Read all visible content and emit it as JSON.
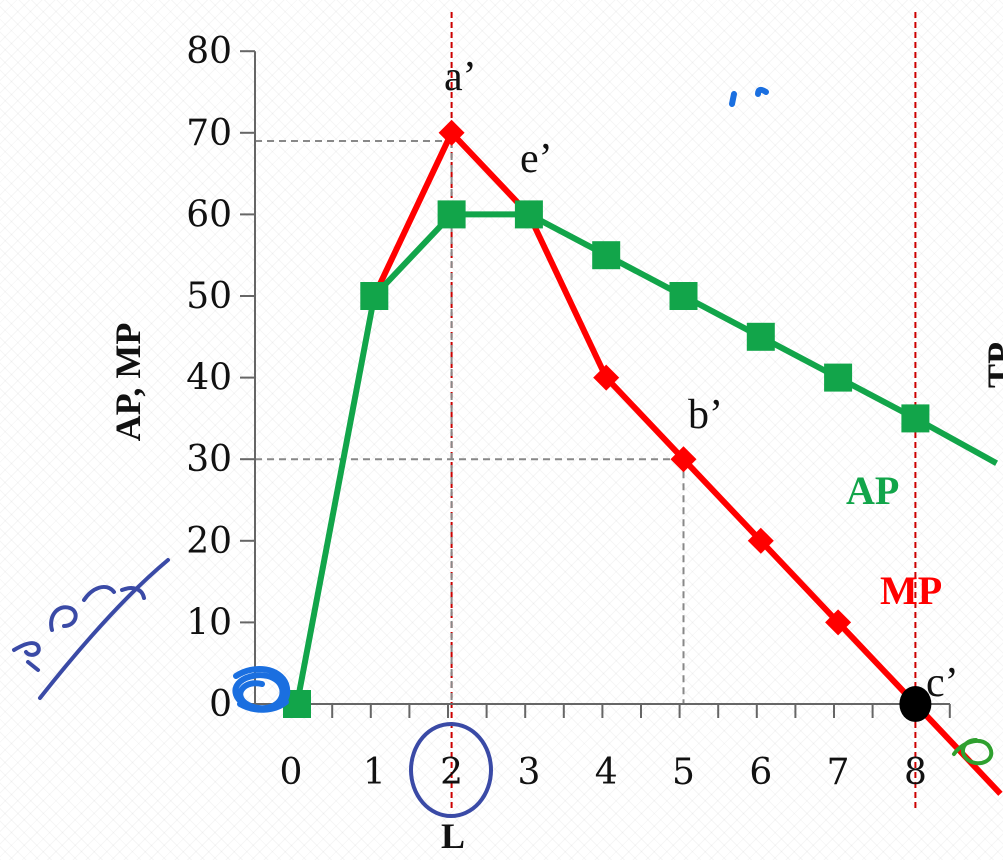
{
  "chart_data": {
    "type": "line",
    "ylabel": "AP, MP",
    "xlabel": "L",
    "ylim": [
      0,
      80
    ],
    "y_ticks": [
      "0",
      "10",
      "20",
      "30",
      "40",
      "50",
      "60",
      "70",
      "80"
    ],
    "x_ticks": [
      "0",
      "1",
      "2",
      "3",
      "4",
      "5",
      "6",
      "7",
      "8"
    ],
    "series": [
      {
        "name": "AP",
        "color": "#12a54a",
        "marker": "square",
        "points": [
          [
            0,
            0
          ],
          [
            1,
            50
          ],
          [
            2,
            60
          ],
          [
            3,
            60
          ],
          [
            4,
            55
          ],
          [
            5,
            50
          ],
          [
            6,
            45
          ],
          [
            7,
            40
          ],
          [
            8,
            35
          ]
        ]
      },
      {
        "name": "MP",
        "color": "#ff0000",
        "marker": "diamond",
        "points": [
          [
            1,
            50
          ],
          [
            2,
            70
          ],
          [
            3,
            60
          ],
          [
            4,
            40
          ],
          [
            5,
            30
          ],
          [
            6,
            20
          ],
          [
            7,
            10
          ],
          [
            8,
            0
          ]
        ]
      }
    ],
    "annotations": [
      {
        "text": "a’",
        "x": 2,
        "y": 70
      },
      {
        "text": "e’",
        "x": 3,
        "y": 60
      },
      {
        "text": "b’",
        "x": 5,
        "y": 30
      },
      {
        "text": "c’",
        "x": 8,
        "y": 0
      }
    ],
    "reference_lines": [
      {
        "orientation": "vertical",
        "x": 2,
        "color": "#cc0000"
      },
      {
        "orientation": "vertical",
        "x": 8,
        "color": "#cc0000"
      }
    ],
    "guide_lines": [
      {
        "from_y": 69,
        "to_x": 2
      },
      {
        "from_y": 30,
        "to_x": 5
      }
    ],
    "edge_text": "TP"
  },
  "colors": {
    "ink_blue": "#1a6fe0",
    "ink_navy": "#3a4aa6",
    "ink_green": "#2fa02f"
  }
}
